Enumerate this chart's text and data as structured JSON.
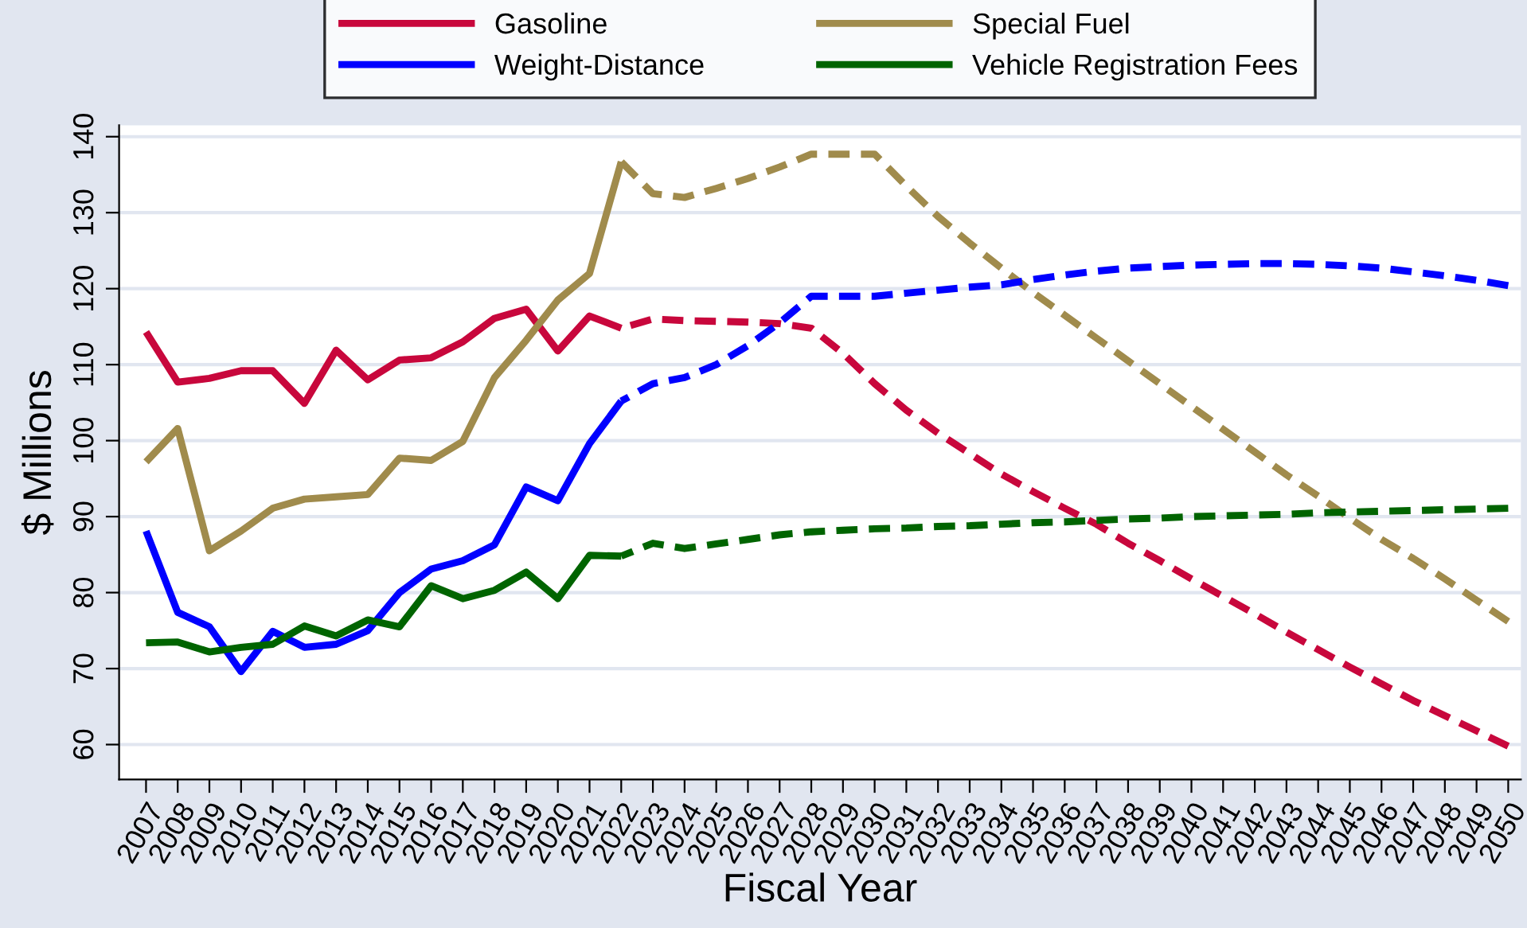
{
  "chart_data": {
    "type": "line",
    "xlabel": "Fiscal Year",
    "ylabel": "$ Millions",
    "categories": [
      "2007",
      "2008",
      "2009",
      "2010",
      "2011",
      "2012",
      "2013",
      "2014",
      "2015",
      "2016",
      "2017",
      "2018",
      "2019",
      "2020",
      "2021",
      "2022",
      "2023",
      "2024",
      "2025",
      "2026",
      "2027",
      "2028",
      "2029",
      "2030",
      "2031",
      "2032",
      "2033",
      "2034",
      "2035",
      "2036",
      "2037",
      "2038",
      "2039",
      "2040",
      "2041",
      "2042",
      "2043",
      "2044",
      "2045",
      "2046",
      "2047",
      "2048",
      "2049",
      "2050"
    ],
    "ylim": [
      55.4,
      141.5
    ],
    "yticks": [
      60,
      70,
      80,
      90,
      100,
      110,
      120,
      130,
      140
    ],
    "grid": "y",
    "legend": "top",
    "marker": "none",
    "series": [
      {
        "name": "Gasoline",
        "color": "#c8073c",
        "line_style": "solid",
        "values": [
          114.3,
          107.7,
          108.2,
          109.2,
          109.2,
          104.9,
          111.9,
          108.0,
          110.6,
          110.9,
          113.0,
          116.1,
          117.3,
          111.8,
          116.4,
          114.8,
          null,
          null,
          null,
          null,
          null,
          null,
          null,
          null,
          null,
          null,
          null,
          null,
          null,
          null,
          null,
          null,
          null,
          null,
          null,
          null,
          null,
          null,
          null,
          null,
          null,
          null,
          null,
          null
        ]
      },
      {
        "name": "Special Fuel",
        "color": "#a08b4c",
        "line_style": "solid",
        "values": [
          97.2,
          101.6,
          85.5,
          88.1,
          91.1,
          92.3,
          92.6,
          92.9,
          97.7,
          97.4,
          99.9,
          108.3,
          113.2,
          118.5,
          122.0,
          136.7,
          null,
          null,
          null,
          null,
          null,
          null,
          null,
          null,
          null,
          null,
          null,
          null,
          null,
          null,
          null,
          null,
          null,
          null,
          null,
          null,
          null,
          null,
          null,
          null,
          null,
          null,
          null,
          null
        ]
      },
      {
        "name": "Weight-Distance",
        "color": "#0000ff",
        "line_style": "solid",
        "values": [
          88.1,
          77.4,
          75.5,
          69.6,
          74.9,
          72.8,
          73.2,
          75.0,
          80.0,
          83.1,
          84.2,
          86.3,
          93.9,
          92.1,
          99.6,
          105.2,
          null,
          null,
          null,
          null,
          null,
          null,
          null,
          null,
          null,
          null,
          null,
          null,
          null,
          null,
          null,
          null,
          null,
          null,
          null,
          null,
          null,
          null,
          null,
          null,
          null,
          null,
          null,
          null
        ]
      },
      {
        "name": "Vehicle Registration Fees",
        "color": "#006400",
        "line_style": "solid",
        "values": [
          73.4,
          73.5,
          72.2,
          72.8,
          73.2,
          75.6,
          74.3,
          76.4,
          75.5,
          80.9,
          79.2,
          80.3,
          82.7,
          79.2,
          84.9,
          84.8,
          null,
          null,
          null,
          null,
          null,
          null,
          null,
          null,
          null,
          null,
          null,
          null,
          null,
          null,
          null,
          null,
          null,
          null,
          null,
          null,
          null,
          null,
          null,
          null,
          null,
          null,
          null,
          null
        ]
      },
      {
        "color": "#c8073c",
        "line_style": "dashed",
        "values": [
          null,
          null,
          null,
          null,
          null,
          null,
          null,
          null,
          null,
          null,
          null,
          null,
          null,
          null,
          null,
          114.8,
          116.0,
          115.8,
          115.7,
          115.6,
          115.4,
          114.8,
          111.5,
          107.5,
          104.0,
          101.0,
          98.3,
          95.6,
          93.3,
          91.1,
          89.0,
          86.5,
          84.2,
          81.8,
          79.5,
          77.2,
          74.8,
          72.5,
          70.2,
          68.0,
          65.8,
          63.8,
          61.8,
          59.8
        ]
      },
      {
        "color": "#a08b4c",
        "line_style": "dashed",
        "values": [
          null,
          null,
          null,
          null,
          null,
          null,
          null,
          null,
          null,
          null,
          null,
          null,
          null,
          null,
          null,
          136.7,
          132.5,
          132.0,
          133.2,
          134.5,
          136.0,
          137.7,
          137.7,
          137.7,
          133.5,
          129.5,
          126.0,
          122.7,
          119.5,
          116.5,
          113.5,
          110.5,
          107.5,
          104.5,
          101.5,
          98.5,
          95.5,
          92.7,
          89.8,
          87.0,
          84.5,
          81.8,
          79.0,
          76.2
        ]
      },
      {
        "color": "#0000ff",
        "line_style": "dashed",
        "values": [
          null,
          null,
          null,
          null,
          null,
          null,
          null,
          null,
          null,
          null,
          null,
          null,
          null,
          null,
          null,
          105.2,
          107.5,
          108.3,
          110.0,
          112.5,
          115.5,
          119.0,
          119.0,
          119.0,
          119.4,
          119.8,
          120.2,
          120.5,
          121.2,
          121.8,
          122.3,
          122.7,
          122.9,
          123.1,
          123.2,
          123.3,
          123.3,
          123.2,
          123.0,
          122.7,
          122.2,
          121.7,
          121.1,
          120.4
        ]
      },
      {
        "color": "#006400",
        "line_style": "dashed",
        "values": [
          null,
          null,
          null,
          null,
          null,
          null,
          null,
          null,
          null,
          null,
          null,
          null,
          null,
          null,
          null,
          84.8,
          86.5,
          85.8,
          86.4,
          87.0,
          87.6,
          88.0,
          88.2,
          88.4,
          88.5,
          88.7,
          88.8,
          89.0,
          89.2,
          89.3,
          89.5,
          89.7,
          89.8,
          90.0,
          90.1,
          90.2,
          90.3,
          90.5,
          90.6,
          90.7,
          90.8,
          90.9,
          91.0,
          91.1
        ]
      }
    ]
  }
}
